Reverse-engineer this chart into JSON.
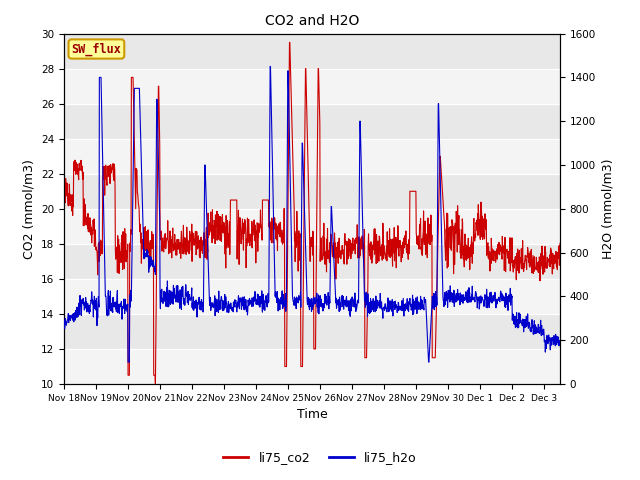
{
  "title": "CO2 and H2O",
  "ylabel_left": "CO2 (mmol/m3)",
  "ylabel_right": "H2O (mmol/m3)",
  "xlabel": "Time",
  "ylim_left": [
    10,
    30
  ],
  "ylim_right": [
    0,
    1600
  ],
  "sw_flux_label": "SW_flux",
  "legend_labels": [
    "li75_co2",
    "li75_h2o"
  ],
  "line_color_co2": "#cc0000",
  "line_color_h2o": "#0000cc",
  "plot_bg_color": "#e8e8e8",
  "stripe_light": "#f2f2f2",
  "title_fontsize": 10,
  "axis_label_fontsize": 9,
  "tick_fontsize": 7.5,
  "legend_fontsize": 9,
  "day_labels": [
    "Nov 18",
    "Nov 19",
    "Nov 20",
    "Nov 21",
    "Nov 22",
    "Nov 23",
    "Nov 24",
    "Nov 25",
    "Nov 26",
    "Nov 27",
    "Nov 28",
    "Nov 29",
    "Nov 30",
    "Dec 1",
    "Dec 2",
    "Dec 3"
  ],
  "yticks_left": [
    10,
    12,
    14,
    16,
    18,
    20,
    22,
    24,
    26,
    28,
    30
  ],
  "yticks_right": [
    0,
    200,
    400,
    600,
    800,
    1000,
    1200,
    1400,
    1600
  ],
  "n_days": 15.5,
  "xlim": [
    0,
    15.5
  ]
}
